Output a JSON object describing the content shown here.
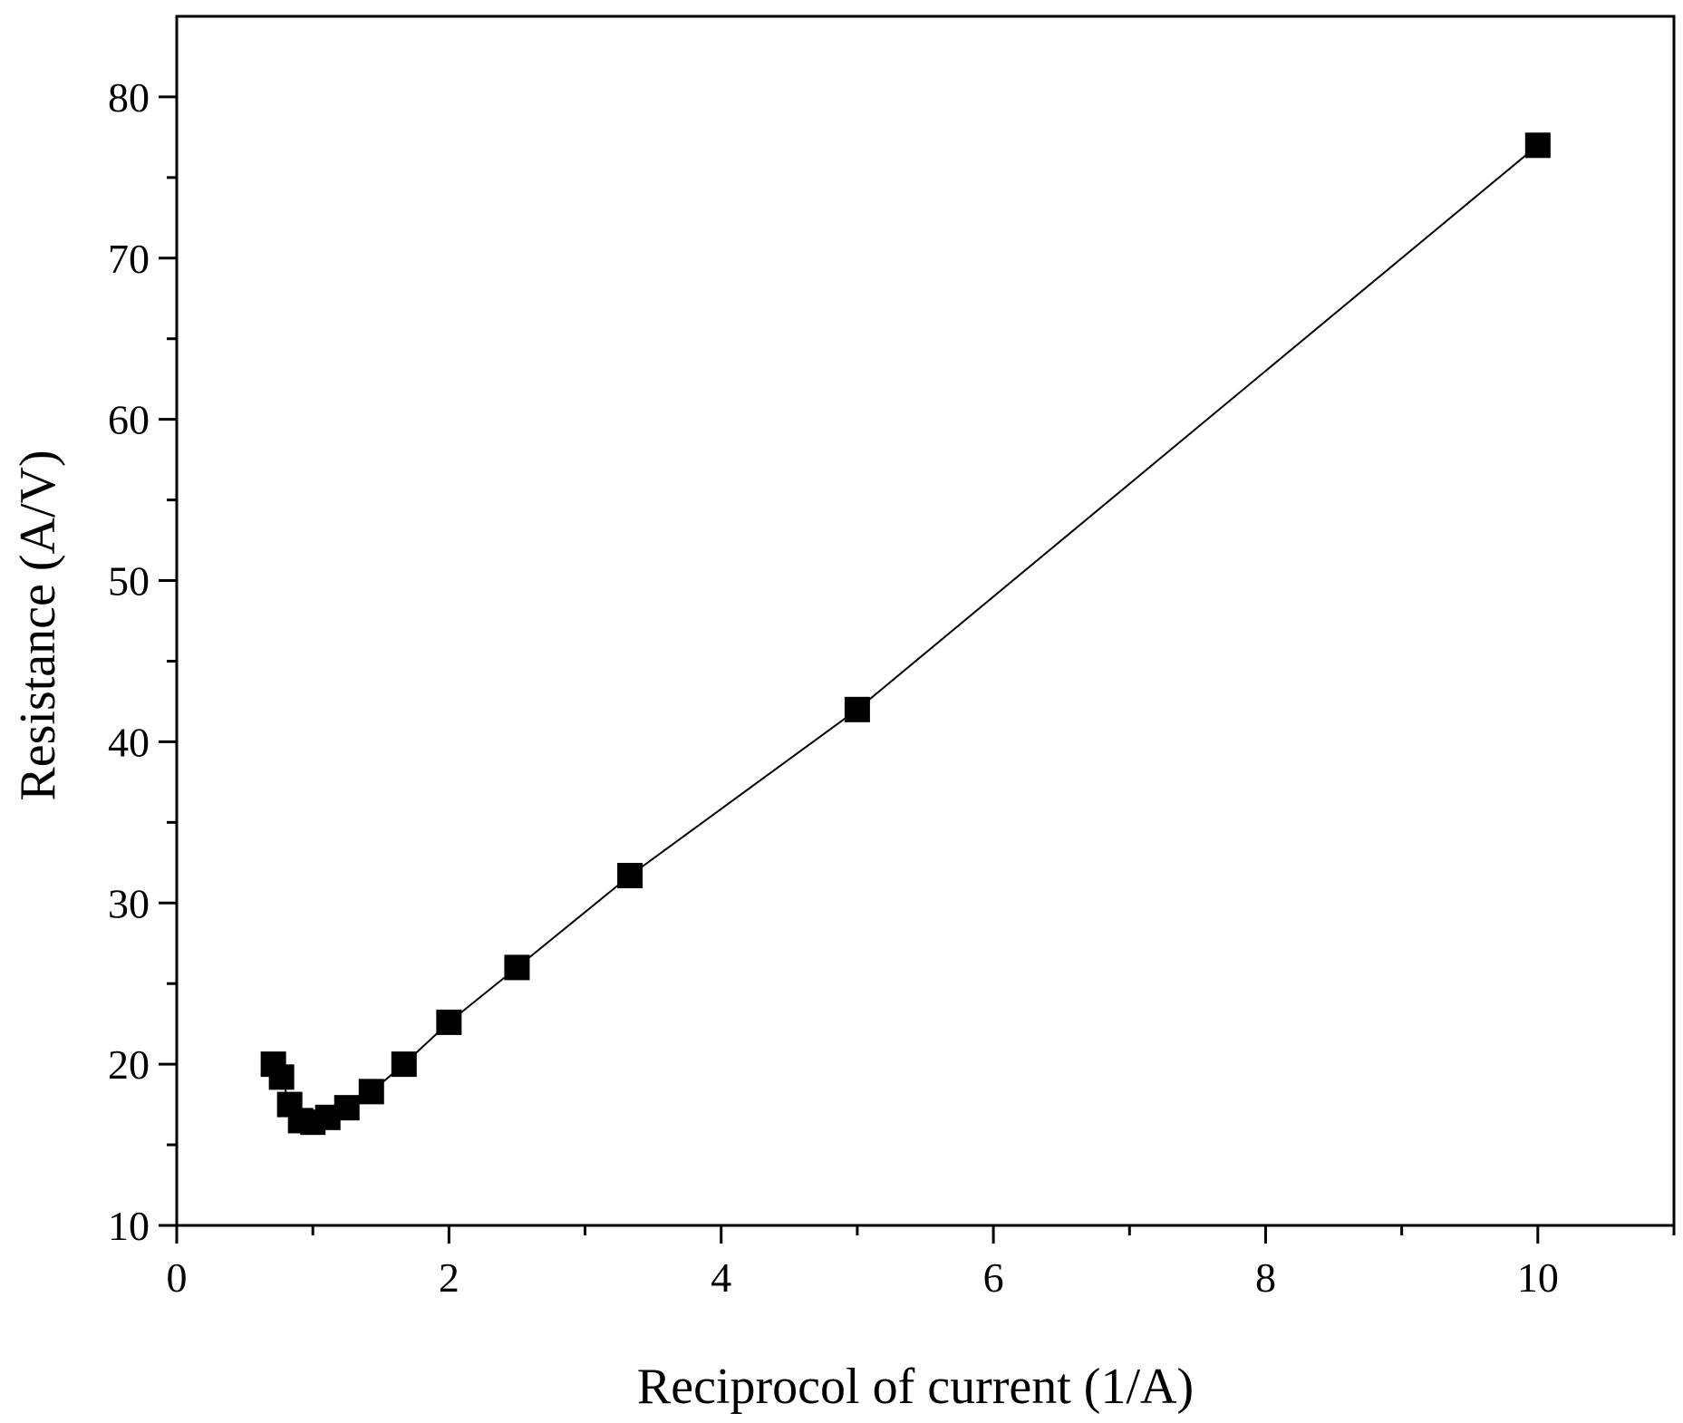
{
  "chart_data": {
    "type": "line",
    "title": "",
    "xlabel": "Reciprocol of current (1/A)",
    "ylabel": "Resistance (A/V)",
    "xlim": [
      0,
      11
    ],
    "ylim": [
      10,
      85
    ],
    "x_major_ticks": [
      0,
      2,
      4,
      6,
      8,
      10
    ],
    "x_minor_ticks": [
      1,
      3,
      5,
      7,
      9,
      11
    ],
    "y_major_ticks": [
      10,
      20,
      30,
      40,
      50,
      60,
      70,
      80
    ],
    "y_minor_ticks": [
      15,
      25,
      35,
      45,
      55,
      65,
      75
    ],
    "x_tick_labels": [
      "0",
      "2",
      "4",
      "6",
      "8",
      "10"
    ],
    "y_tick_labels": [
      "10",
      "20",
      "30",
      "40",
      "50",
      "60",
      "70",
      "80"
    ],
    "grid": false,
    "legend": "none",
    "marker": "square",
    "color": "#000000",
    "series": [
      {
        "x": [
          0.71,
          0.77,
          0.83,
          0.91,
          1.0,
          1.11,
          1.25,
          1.43,
          1.67,
          2.0,
          2.5,
          3.33,
          5.0,
          10.0
        ],
        "y": [
          20.0,
          19.2,
          17.5,
          16.5,
          16.4,
          16.7,
          17.3,
          18.3,
          20.0,
          22.6,
          26.0,
          31.7,
          42.0,
          77.0
        ]
      }
    ]
  }
}
